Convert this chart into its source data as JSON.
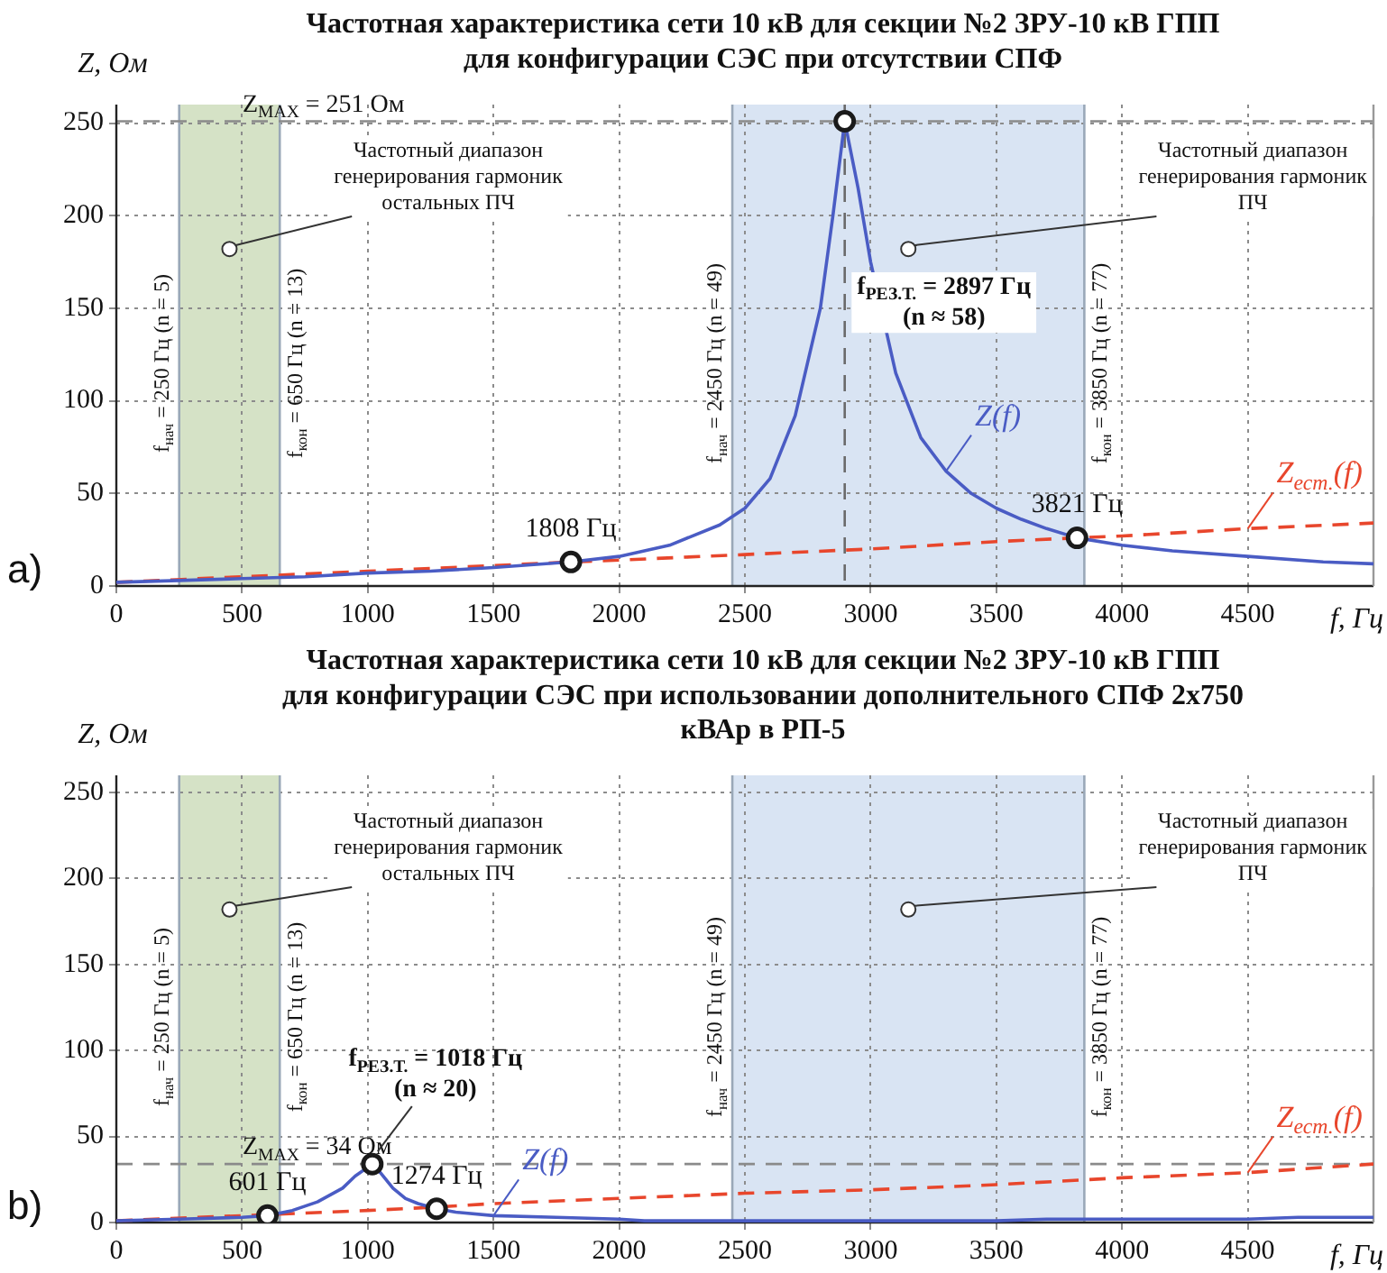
{
  "chart_data": [
    {
      "type": "line",
      "title": "Частотная характеристика сети 10 кВ для секции №2 ЗРУ-10 кВ ГПП\nдля конфигурации СЭС при отсутствии СПФ",
      "xlabel": "f, Гц",
      "ylabel": "Z, Ом",
      "xlim": [
        0,
        5000
      ],
      "xticks": [
        0,
        500,
        1000,
        1500,
        2000,
        2500,
        3000,
        3500,
        4000,
        4500
      ],
      "ylim": [
        0,
        260
      ],
      "yticks": [
        0,
        50,
        100,
        150,
        200,
        250
      ],
      "grid": true,
      "legend": false,
      "bands": [
        {
          "axis": "x",
          "from": 250,
          "to": 650,
          "label": "Частотный диапазон\nгенерирования гармоник\nостальных ПЧ",
          "color": "#d5e2c6"
        },
        {
          "axis": "x",
          "from": 2450,
          "to": 3850,
          "label": "Частотный диапазон\nгенерирования гармоник\nПЧ",
          "color": "#d9e4f3"
        }
      ],
      "ref_lines": [
        {
          "axis": "x",
          "value": 250,
          "label": "f$_{нач}$ = 250 Гц (n = 5)",
          "color": "#9aa8b8"
        },
        {
          "axis": "x",
          "value": 650,
          "label": "f$_{кон}$ = 650 Гц (n = 13)",
          "color": "#9aa8b8"
        },
        {
          "axis": "x",
          "value": 2450,
          "label": "f$_{нач}$ = 2450 Гц (n = 49)",
          "color": "#9aa8b8"
        },
        {
          "axis": "x",
          "value": 3850,
          "label": "f$_{кон}$ = 3850 Гц (n = 77)",
          "color": "#9aa8b8"
        },
        {
          "axis": "y",
          "value": 251,
          "label": "Z$_{MAX}$ = 251 Ом",
          "color": "#8a8a8a",
          "line_style": "dashed"
        },
        {
          "axis": "x",
          "value": 2897,
          "label": "f$_{РЕЗ.Т.}$ = 2897 Гц\n(n ≈ 58)",
          "color": "#6a6a6a",
          "line_style": "dashed"
        }
      ],
      "annotations": [
        "a)",
        {
          "text": "1808 Гц",
          "x": 1808,
          "y": 13
        },
        {
          "text": "3821 Гц",
          "x": 3821,
          "y": 26
        }
      ],
      "series": [
        {
          "name": "Z(f)",
          "type": "line",
          "color": "#4a5cc4",
          "line_style": "solid",
          "x": [
            0,
            250,
            500,
            750,
            1000,
            1250,
            1500,
            1808,
            2000,
            2200,
            2400,
            2500,
            2600,
            2700,
            2800,
            2850,
            2897,
            2950,
            3000,
            3100,
            3200,
            3300,
            3400,
            3500,
            3600,
            3700,
            3821,
            4000,
            4200,
            4500,
            4800,
            5000
          ],
          "values": [
            2,
            3,
            4,
            5,
            7,
            8,
            10,
            13,
            16,
            22,
            33,
            42,
            58,
            92,
            150,
            200,
            251,
            215,
            175,
            115,
            80,
            62,
            50,
            42,
            36,
            31,
            26,
            22,
            19,
            16,
            13,
            12
          ]
        },
        {
          "name": "Z$_{ест.}$(f)",
          "type": "line",
          "color": "#e8462c",
          "line_style": "dashed",
          "x": [
            0,
            500,
            1000,
            1500,
            1808,
            2000,
            2500,
            3000,
            3500,
            3821,
            4000,
            4500,
            5000
          ],
          "values": [
            2,
            5,
            8,
            11,
            13,
            14,
            17,
            20,
            24,
            26,
            27,
            31,
            34
          ]
        },
        {
          "type": "scatter",
          "color": "#1a1a1a",
          "marker": "circle",
          "x": [
            1808,
            2897,
            3821
          ],
          "values": [
            13,
            251,
            26
          ]
        }
      ]
    },
    {
      "type": "line",
      "title": "Частотная характеристика сети 10 кВ для секции №2 ЗРУ-10 кВ ГПП\nдля конфигурации СЭС при использовании дополнительного СПФ 2x750\nкВАр в РП-5",
      "xlabel": "f, Гц",
      "ylabel": "Z, Ом",
      "xlim": [
        0,
        5000
      ],
      "xticks": [
        0,
        500,
        1000,
        1500,
        2000,
        2500,
        3000,
        3500,
        4000,
        4500
      ],
      "ylim": [
        0,
        260
      ],
      "yticks": [
        0,
        50,
        100,
        150,
        200,
        250
      ],
      "grid": true,
      "legend": false,
      "bands": [
        {
          "axis": "x",
          "from": 250,
          "to": 650,
          "label": "Частотный диапазон\nгенерирования гармоник\nостальных ПЧ",
          "color": "#d5e2c6"
        },
        {
          "axis": "x",
          "from": 2450,
          "to": 3850,
          "label": "Частотный диапазон\nгенерирования гармоник\nПЧ",
          "color": "#d9e4f3"
        }
      ],
      "ref_lines": [
        {
          "axis": "x",
          "value": 250,
          "label": "f$_{нач}$ = 250 Гц (n = 5)",
          "color": "#9aa8b8"
        },
        {
          "axis": "x",
          "value": 650,
          "label": "f$_{кон}$ = 650 Гц (n = 13)",
          "color": "#9aa8b8"
        },
        {
          "axis": "x",
          "value": 2450,
          "label": "f$_{нач}$ = 2450 Гц (n = 49)",
          "color": "#9aa8b8"
        },
        {
          "axis": "x",
          "value": 3850,
          "label": "f$_{кон}$ = 3850 Гц (n = 77)",
          "color": "#9aa8b8"
        },
        {
          "axis": "y",
          "value": 34,
          "label": "Z$_{MAX}$ = 34 Ом",
          "color": "#8a8a8a",
          "line_style": "dashed"
        }
      ],
      "annotations": [
        "b)",
        {
          "text": "f$_{РЕЗ.Т.}$ = 1018 Гц\n(n ≈ 20)",
          "x": 1018,
          "y": 34
        },
        {
          "text": "601 Гц",
          "x": 601,
          "y": 4
        },
        {
          "text": "1274 Гц",
          "x": 1274,
          "y": 8
        }
      ],
      "series": [
        {
          "name": "Z(f)",
          "type": "line",
          "color": "#4a5cc4",
          "line_style": "solid",
          "x": [
            0,
            250,
            500,
            601,
            700,
            800,
            900,
            950,
            1018,
            1050,
            1100,
            1150,
            1200,
            1274,
            1350,
            1500,
            1750,
            2000,
            2100,
            2500,
            3000,
            3100,
            3500,
            3700,
            4000,
            4500,
            4700,
            5000
          ],
          "values": [
            1,
            2,
            3,
            4,
            7,
            12,
            20,
            27,
            34,
            29,
            20,
            14,
            11,
            8,
            6,
            4,
            3,
            2,
            1,
            1,
            1,
            1,
            1,
            2,
            2,
            2,
            3,
            3
          ]
        },
        {
          "name": "Z$_{ест.}$(f)",
          "type": "line",
          "color": "#e8462c",
          "line_style": "dashed",
          "x": [
            0,
            500,
            1000,
            1274,
            1500,
            2000,
            2500,
            3000,
            3500,
            4000,
            4500,
            5000
          ],
          "values": [
            1,
            4,
            7,
            9,
            11,
            14,
            17,
            19,
            22,
            26,
            29,
            34
          ]
        },
        {
          "type": "scatter",
          "color": "#1a1a1a",
          "marker": "circle",
          "x": [
            601,
            1018,
            1274
          ],
          "values": [
            4,
            34,
            8
          ]
        }
      ]
    }
  ]
}
